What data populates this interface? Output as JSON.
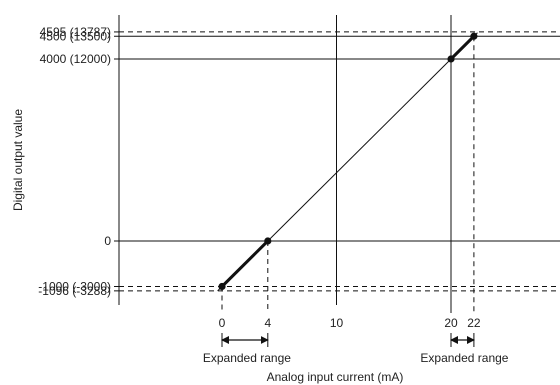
{
  "chart_data": {
    "type": "line",
    "xlabel": "Analog input current (mA)",
    "ylabel": "Digital output value",
    "x_ticks": [
      {
        "value": 0,
        "label": "0"
      },
      {
        "value": 4,
        "label": "4"
      },
      {
        "value": 10,
        "label": "10"
      },
      {
        "value": 20,
        "label": "20"
      },
      {
        "value": 22,
        "label": "22"
      }
    ],
    "y_ticks": [
      {
        "value": 4595,
        "label": "4595 (13787)",
        "style": "dashed"
      },
      {
        "value": 4500,
        "label": "4500 (13500)",
        "style": "solid"
      },
      {
        "value": 4000,
        "label": "4000 (12000)",
        "style": "solid"
      },
      {
        "value": 0,
        "label": "0",
        "style": "solid"
      },
      {
        "value": -1000,
        "label": "-1000 (-3000)",
        "style": "dashed"
      },
      {
        "value": -1096,
        "label": "-1096 (-3288)",
        "style": "dashed"
      }
    ],
    "series": [
      {
        "line": "thin",
        "points": [
          {
            "x": 4,
            "y": 0
          },
          {
            "x": 20,
            "y": 4000
          }
        ]
      },
      {
        "line": "thick",
        "points": [
          {
            "x": 0,
            "y": -1000
          },
          {
            "x": 4,
            "y": 0
          }
        ]
      },
      {
        "line": "thick",
        "points": [
          {
            "x": 20,
            "y": 4000
          },
          {
            "x": 22,
            "y": 4500
          }
        ]
      },
      {
        "line": "dashed",
        "points": [
          {
            "x": -0.384,
            "y": -1096
          },
          {
            "x": 0,
            "y": -1000
          }
        ]
      },
      {
        "line": "dashed",
        "points": [
          {
            "x": 22,
            "y": 4500
          },
          {
            "x": 22.38,
            "y": 4595
          }
        ]
      }
    ],
    "markers": [
      {
        "x": 0,
        "y": -1000
      },
      {
        "x": 4,
        "y": 0
      },
      {
        "x": 20,
        "y": 4000
      },
      {
        "x": 22,
        "y": 4500
      }
    ],
    "annotations": [
      {
        "label": "Expanded range",
        "from": 0,
        "to": 4
      },
      {
        "label": "Expanded range",
        "from": 20,
        "to": 22
      }
    ],
    "colors": {
      "line": "#111111",
      "grid": "#111111"
    }
  }
}
